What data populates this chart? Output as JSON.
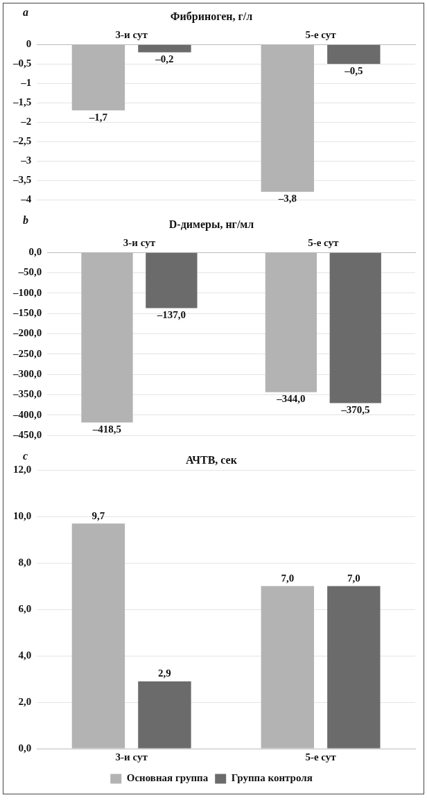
{
  "chart_data": [
    {
      "type": "bar",
      "title": "Фибриноген, г/л",
      "annotations": [
        "a"
      ],
      "categories": [
        "3-и сут",
        "5-е сут"
      ],
      "series": [
        {
          "color": "#b3b3b3",
          "values": [
            -1.7,
            -3.8
          ],
          "value_labels": [
            "–1,7",
            "–3,8"
          ]
        },
        {
          "color": "#6b6b6b",
          "values": [
            -0.2,
            -0.5
          ],
          "value_labels": [
            "–0,2",
            "–0,5"
          ]
        }
      ],
      "ylim": [
        -4,
        0
      ],
      "yticks": [
        {
          "value": 0,
          "label": "0"
        },
        {
          "value": -0.5,
          "label": "–0,5"
        },
        {
          "value": -1,
          "label": "–1"
        },
        {
          "value": -1.5,
          "label": "–1,5"
        },
        {
          "value": -2,
          "label": "–2"
        },
        {
          "value": -2.5,
          "label": "–2,5"
        },
        {
          "value": -3,
          "label": "–3"
        },
        {
          "value": -3.5,
          "label": "–3,5"
        },
        {
          "value": -4,
          "label": "–4"
        }
      ],
      "grid": "y",
      "legend": false
    },
    {
      "type": "bar",
      "title": "D-димеры, нг/мл",
      "annotations": [
        "b"
      ],
      "categories": [
        "3-и сут",
        "5-е сут"
      ],
      "series": [
        {
          "color": "#b3b3b3",
          "values": [
            -418.5,
            -344.0
          ],
          "value_labels": [
            "–418,5",
            "–344,0"
          ]
        },
        {
          "color": "#6b6b6b",
          "values": [
            -137.0,
            -370.5
          ],
          "value_labels": [
            "–137,0",
            "–370,5"
          ]
        }
      ],
      "ylim": [
        -450,
        0
      ],
      "yticks": [
        {
          "value": 0,
          "label": "0,0"
        },
        {
          "value": -50,
          "label": "–50,0"
        },
        {
          "value": -100,
          "label": "–100,0"
        },
        {
          "value": -150,
          "label": "–150,0"
        },
        {
          "value": -200,
          "label": "–200,0"
        },
        {
          "value": -250,
          "label": "–250,0"
        },
        {
          "value": -300,
          "label": "–300,0"
        },
        {
          "value": -350,
          "label": "–350,0"
        },
        {
          "value": -400,
          "label": "–400,0"
        },
        {
          "value": -450,
          "label": "–450,0"
        }
      ],
      "grid": "y",
      "legend": false
    },
    {
      "type": "bar",
      "title": "АЧТВ, сек",
      "annotations": [
        "c"
      ],
      "categories": [
        "3-и сут",
        "5-е сут"
      ],
      "series": [
        {
          "name": "Основная группа",
          "color": "#b3b3b3",
          "values": [
            9.7,
            7.0
          ],
          "value_labels": [
            "9,7",
            "7,0"
          ]
        },
        {
          "name": "Группа контроля",
          "color": "#6b6b6b",
          "values": [
            2.9,
            7.0
          ],
          "value_labels": [
            "2,9",
            "7,0"
          ]
        }
      ],
      "ylim": [
        0,
        12
      ],
      "yticks": [
        {
          "value": 0,
          "label": "0,0"
        },
        {
          "value": 2,
          "label": "2,0"
        },
        {
          "value": 4,
          "label": "4,0"
        },
        {
          "value": 6,
          "label": "6,0"
        },
        {
          "value": 8,
          "label": "8,0"
        },
        {
          "value": 10,
          "label": "10,0"
        },
        {
          "value": 12,
          "label": "12,0"
        }
      ],
      "grid": "y",
      "legend": "bottom"
    }
  ]
}
